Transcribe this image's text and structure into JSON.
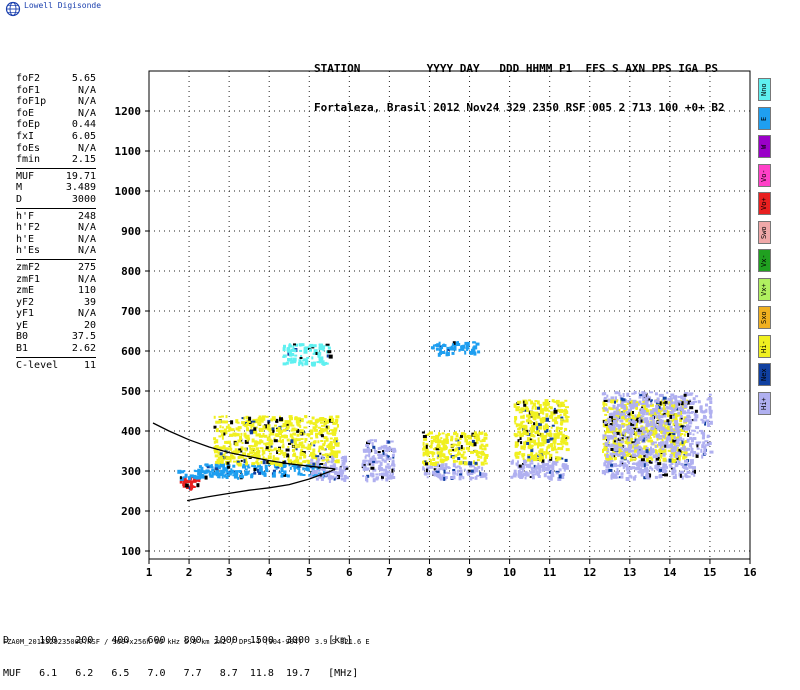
{
  "logo": {
    "text": "Lowell Digisonde",
    "icon": "globe-icon"
  },
  "header": {
    "line1": "STATION          YYYY DAY   DDD HHMM P1  FFS S AXN PPS IGA PS",
    "line2": "Fortaleza, Brasil 2012 Nov24 329 2350 RSF 005 2 713 100 +0+ B2"
  },
  "parameters": [
    [
      {
        "k": "foF2",
        "v": "5.65"
      },
      {
        "k": "foF1",
        "v": "N/A"
      },
      {
        "k": "foF1p",
        "v": "N/A"
      },
      {
        "k": "foE",
        "v": "N/A"
      },
      {
        "k": "foEp",
        "v": "0.44"
      },
      {
        "k": "fxI",
        "v": "6.05"
      },
      {
        "k": "foEs",
        "v": "N/A"
      },
      {
        "k": "fmin",
        "v": "2.15"
      }
    ],
    [
      {
        "k": "MUF",
        "v": "19.71"
      },
      {
        "k": "M",
        "v": "3.489"
      },
      {
        "k": "D",
        "v": "3000"
      }
    ],
    [
      {
        "k": "h'F",
        "v": "248"
      },
      {
        "k": "h'F2",
        "v": "N/A"
      },
      {
        "k": "h'E",
        "v": "N/A"
      },
      {
        "k": "h'Es",
        "v": "N/A"
      }
    ],
    [
      {
        "k": "zmF2",
        "v": "275"
      },
      {
        "k": "zmF1",
        "v": "N/A"
      },
      {
        "k": "zmE",
        "v": "110"
      },
      {
        "k": "yF2",
        "v": "39"
      },
      {
        "k": "yF1",
        "v": "N/A"
      },
      {
        "k": "yE",
        "v": "20"
      },
      {
        "k": "B0",
        "v": "37.5"
      },
      {
        "k": "B1",
        "v": "2.62"
      }
    ],
    [
      {
        "k": "C-level",
        "v": "11"
      }
    ]
  ],
  "legend": [
    {
      "label": "Nno",
      "color": "#5ff0f0"
    },
    {
      "label": "E",
      "color": "#1f9ff0"
    },
    {
      "label": "W",
      "color": "#9a00c8"
    },
    {
      "label": "Vo-",
      "color": "#ff40c8"
    },
    {
      "label": "Vo+",
      "color": "#e82020"
    },
    {
      "label": "Swo",
      "color": "#f0a8a8"
    },
    {
      "label": "Vx-",
      "color": "#20a020"
    },
    {
      "label": "Vx+",
      "color": "#b0f060"
    },
    {
      "label": "Sxo",
      "color": "#f0b020"
    },
    {
      "label": "Hi-",
      "color": "#f0f020"
    },
    {
      "label": "Nex",
      "color": "#1040a0"
    },
    {
      "label": "Hi+",
      "color": "#b0b0f0"
    }
  ],
  "chart_data": {
    "type": "scatter",
    "xlim": [
      1,
      16
    ],
    "ylim": [
      80,
      1300
    ],
    "x_ticks": [
      1,
      2,
      3,
      4,
      5,
      6,
      7,
      8,
      9,
      10,
      11,
      12,
      13,
      14,
      15,
      16
    ],
    "y_ticks": [
      100,
      200,
      300,
      400,
      500,
      600,
      700,
      800,
      900,
      1000,
      1100,
      1200
    ],
    "grid": true,
    "clusters": [
      {
        "x": [
          1.7,
          2.3
        ],
        "y": [
          260,
          290
        ],
        "color": "#e82020"
      },
      {
        "x": [
          1.7,
          3.3
        ],
        "y": [
          285,
          305
        ],
        "color": "#1f9ff0"
      },
      {
        "x": [
          2.2,
          5.4
        ],
        "y": [
          290,
          320
        ],
        "color": "#1f9ff0"
      },
      {
        "x": [
          2.6,
          5.7
        ],
        "y": [
          320,
          440
        ],
        "color": "#f0f020"
      },
      {
        "x": [
          5.0,
          5.9
        ],
        "y": [
          280,
          340
        ],
        "color": "#b0b0f0"
      },
      {
        "x": [
          6.3,
          7.1
        ],
        "y": [
          280,
          380
        ],
        "color": "#b0b0f0"
      },
      {
        "x": [
          7.8,
          9.4
        ],
        "y": [
          285,
          320
        ],
        "color": "#b0b0f0"
      },
      {
        "x": [
          7.8,
          9.4
        ],
        "y": [
          320,
          400
        ],
        "color": "#f0f020"
      },
      {
        "x": [
          10.0,
          11.4
        ],
        "y": [
          285,
          330
        ],
        "color": "#b0b0f0"
      },
      {
        "x": [
          10.1,
          11.4
        ],
        "y": [
          330,
          480
        ],
        "color": "#f0f020"
      },
      {
        "x": [
          12.3,
          14.6
        ],
        "y": [
          285,
          330
        ],
        "color": "#b0b0f0"
      },
      {
        "x": [
          12.3,
          14.4
        ],
        "y": [
          330,
          480
        ],
        "color": "#f0f020"
      },
      {
        "x": [
          12.3,
          15.0
        ],
        "y": [
          340,
          500
        ],
        "color": "#b0b0f0"
      },
      {
        "x": [
          4.3,
          5.5
        ],
        "y": [
          570,
          620
        ],
        "color": "#5ff0f0"
      },
      {
        "x": [
          8.0,
          9.2
        ],
        "y": [
          595,
          625
        ],
        "color": "#1f9ff0"
      }
    ],
    "trace_o": {
      "x": [
        1.95,
        2.5,
        3.0,
        3.5,
        4.0,
        4.5,
        5.0,
        5.3,
        5.5,
        5.65
      ],
      "y": [
        226,
        236,
        244,
        252,
        258,
        266,
        280,
        291,
        298,
        305
      ]
    },
    "trace_upper": {
      "x": [
        1.1,
        1.5,
        2.0,
        2.5,
        3.0,
        3.5,
        4.0,
        4.5,
        5.0,
        5.4,
        5.65
      ],
      "y": [
        420,
        400,
        378,
        360,
        346,
        336,
        326,
        318,
        312,
        308,
        305
      ]
    }
  },
  "d_table": {
    "d_row": "D     100   200   400   600   800  1000  1500  3000   [km]",
    "muf_row": "MUF   6.1   6.2   6.5   7.0   7.7   8.7  11.8  19.7   [MHz]"
  },
  "footer": "FZA0M_2012329235000.RSF / 300+x256h 50 kHz 5.0 km 2x2 / DPS-4 (904-904)   3.9 S 321.6 E"
}
